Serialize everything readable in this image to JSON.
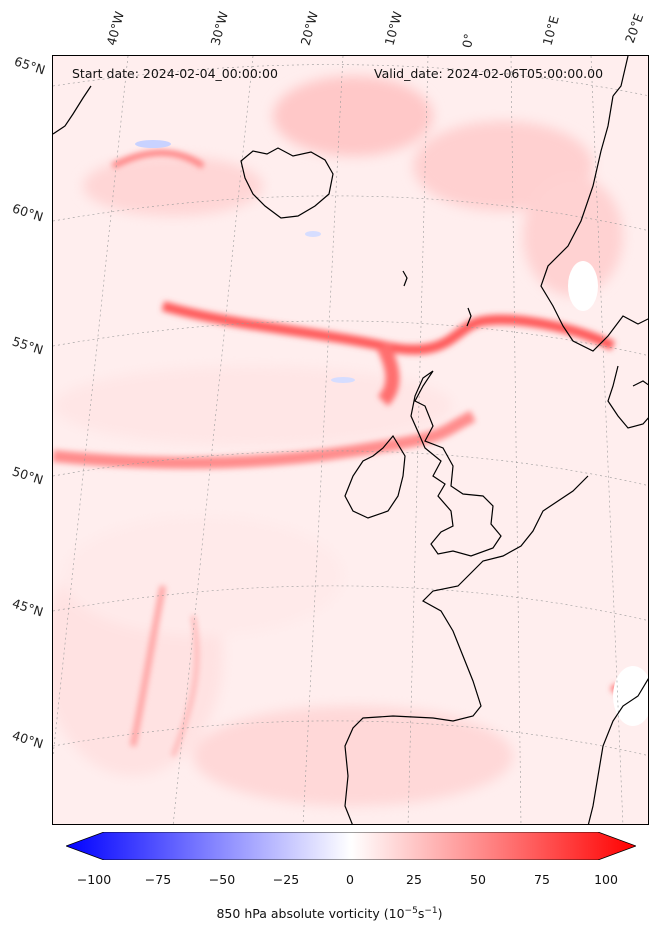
{
  "map": {
    "start_label": "Start date: 2024-02-04_00:00:00",
    "valid_label": "Valid_date: 2024-02-06T05:00:00.00",
    "longitude_labels": [
      "40°W",
      "30°W",
      "20°W",
      "10°W",
      "0°",
      "10°E",
      "20°E"
    ],
    "latitude_labels": [
      "65°N",
      "60°N",
      "55°N",
      "50°N",
      "45°N",
      "40°N"
    ]
  },
  "colorbar": {
    "ticks": [
      "−100",
      "−75",
      "−50",
      "−25",
      "0",
      "25",
      "50",
      "75",
      "100"
    ],
    "label_prefix": "850 hPa absolute vorticity (10",
    "label_exp1": "−5",
    "label_mid": "s",
    "label_exp2": "−1",
    "label_suffix": ")",
    "min_color": "#0000ff",
    "mid_color": "#ffffff",
    "max_color": "#ff0000"
  }
}
